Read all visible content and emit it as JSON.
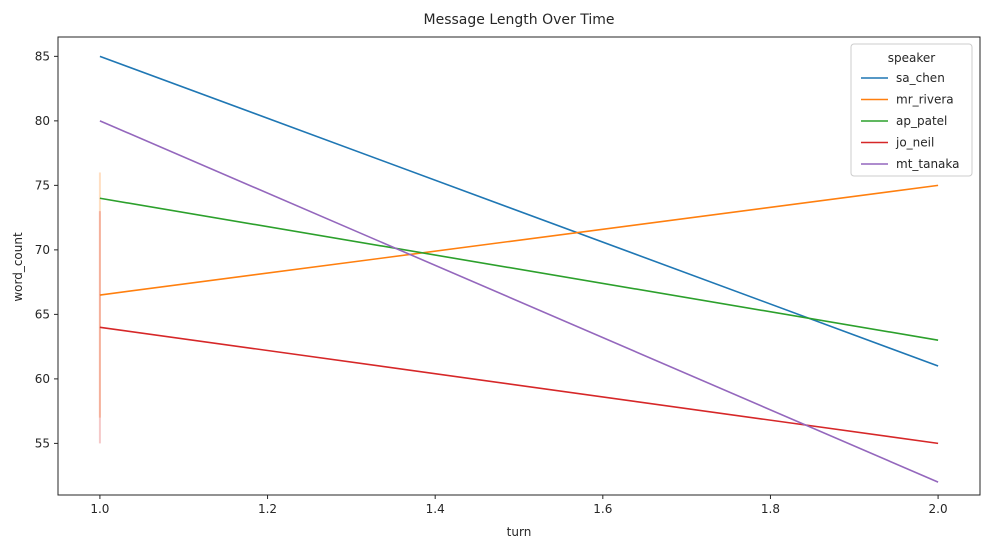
{
  "chart_data": {
    "type": "line",
    "title": "Message Length Over Time",
    "xlabel": "turn",
    "ylabel": "word_count",
    "xlim": [
      0.95,
      2.05
    ],
    "ylim": [
      51.0,
      86.5
    ],
    "xticks": [
      1.0,
      1.2,
      1.4,
      1.6,
      1.8,
      2.0
    ],
    "xtick_labels": [
      "1.0",
      "1.2",
      "1.4",
      "1.6",
      "1.8",
      "2.0"
    ],
    "yticks": [
      55,
      60,
      65,
      70,
      75,
      80,
      85
    ],
    "ytick_labels": [
      "55",
      "60",
      "65",
      "70",
      "75",
      "80",
      "85"
    ],
    "grid": false,
    "legend": {
      "title": "speaker",
      "placement": "top-right"
    },
    "x": [
      1,
      2
    ],
    "series": [
      {
        "name": "sa_chen",
        "color": "#1f77b4",
        "values": [
          85,
          61
        ],
        "band_at_first": [
          85,
          85
        ]
      },
      {
        "name": "mr_rivera",
        "color": "#ff7f0e",
        "values": [
          66.5,
          75
        ],
        "band_at_first": [
          57,
          76
        ]
      },
      {
        "name": "ap_patel",
        "color": "#2ca02c",
        "values": [
          74,
          63
        ],
        "band_at_first": [
          74,
          74
        ]
      },
      {
        "name": "jo_neil",
        "color": "#d62728",
        "values": [
          64,
          55
        ],
        "band_at_first": [
          55,
          73
        ]
      },
      {
        "name": "mt_tanaka",
        "color": "#9467bd",
        "values": [
          80,
          52
        ],
        "band_at_first": [
          80,
          80
        ]
      }
    ]
  }
}
